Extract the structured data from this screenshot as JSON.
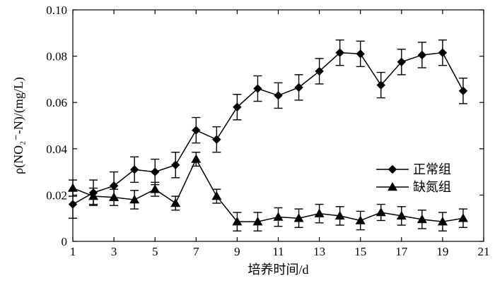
{
  "chart_data": {
    "type": "line",
    "xlabel": "培养时间/d",
    "ylabel": "ρ(NO₂⁻-N)/(mg/L)",
    "xlim": [
      1,
      21
    ],
    "ylim": [
      0,
      0.1
    ],
    "xticks": [
      1,
      3,
      5,
      7,
      9,
      11,
      13,
      15,
      17,
      19,
      21
    ],
    "yticks": [
      0,
      0.02,
      0.04,
      0.06,
      0.08,
      0.1
    ],
    "ytick_labels": [
      "0",
      "0.02",
      "0.04",
      "0.06",
      "0.08",
      "0.10"
    ],
    "grid": false,
    "legend_position": "right",
    "series": [
      {
        "name": "正常组",
        "marker": "diamond",
        "x": [
          1,
          2,
          3,
          4,
          5,
          6,
          7,
          8,
          9,
          10,
          11,
          12,
          13,
          14,
          15,
          16,
          17,
          18,
          19,
          20
        ],
        "y": [
          0.016,
          0.021,
          0.024,
          0.031,
          0.03,
          0.033,
          0.048,
          0.044,
          0.058,
          0.066,
          0.063,
          0.0665,
          0.0735,
          0.0815,
          0.081,
          0.0675,
          0.0775,
          0.0805,
          0.0815,
          0.065
        ],
        "err": [
          0.006,
          0.0055,
          0.006,
          0.0055,
          0.0055,
          0.0055,
          0.0055,
          0.0055,
          0.0055,
          0.0055,
          0.0055,
          0.0055,
          0.0055,
          0.0055,
          0.0055,
          0.0055,
          0.0055,
          0.0055,
          0.0055,
          0.0055
        ]
      },
      {
        "name": "缺氮组",
        "marker": "triangle",
        "x": [
          1,
          2,
          3,
          4,
          5,
          6,
          7,
          8,
          9,
          10,
          11,
          12,
          13,
          14,
          15,
          16,
          17,
          18,
          19,
          20
        ],
        "y": [
          0.023,
          0.0195,
          0.019,
          0.018,
          0.0225,
          0.0165,
          0.0355,
          0.0195,
          0.0085,
          0.0085,
          0.0105,
          0.01,
          0.012,
          0.011,
          0.009,
          0.0125,
          0.011,
          0.0095,
          0.0085,
          0.01
        ],
        "err": [
          0.0035,
          0.0035,
          0.0035,
          0.004,
          0.003,
          0.003,
          0.003,
          0.003,
          0.004,
          0.004,
          0.004,
          0.004,
          0.004,
          0.004,
          0.004,
          0.0035,
          0.004,
          0.004,
          0.004,
          0.004
        ]
      }
    ],
    "colors": {
      "line": "#000000",
      "marker": "#000000"
    }
  }
}
